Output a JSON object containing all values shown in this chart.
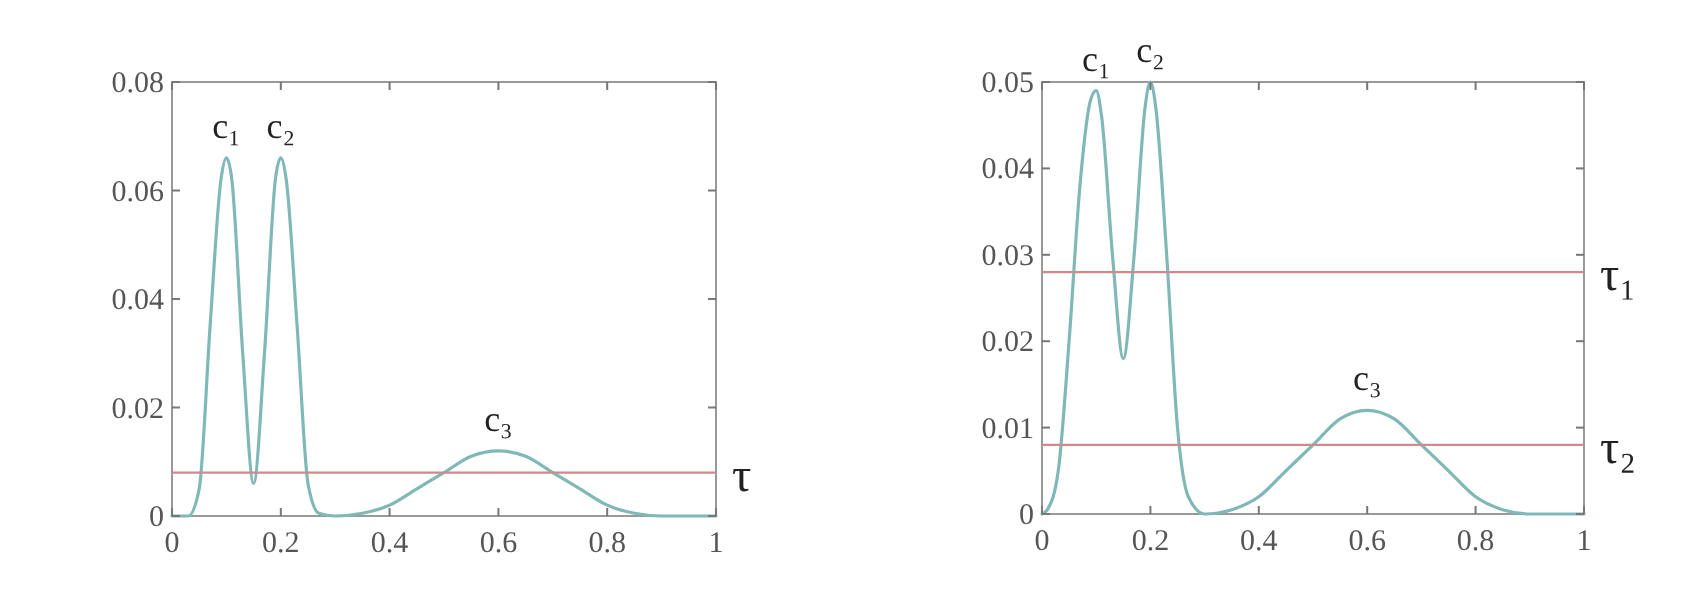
{
  "chart_data": [
    {
      "type": "line",
      "x": [
        0,
        0.03,
        0.05,
        0.07,
        0.09,
        0.1,
        0.11,
        0.13,
        0.15,
        0.17,
        0.19,
        0.2,
        0.21,
        0.23,
        0.25,
        0.27,
        0.3,
        0.35,
        0.4,
        0.45,
        0.5,
        0.55,
        0.6,
        0.65,
        0.7,
        0.75,
        0.8,
        0.85,
        0.9,
        1
      ],
      "series": [
        {
          "color": "#80b8b8",
          "values": [
            0,
            0,
            0.005,
            0.035,
            0.062,
            0.066,
            0.062,
            0.03,
            0.006,
            0.03,
            0.062,
            0.066,
            0.062,
            0.035,
            0.006,
            0.0005,
            0,
            0.0005,
            0.002,
            0.005,
            0.008,
            0.011,
            0.012,
            0.011,
            0.008,
            0.005,
            0.002,
            0.0005,
            0,
            0
          ]
        }
      ],
      "xlim": [
        0,
        1
      ],
      "xticks": [
        0,
        0.2,
        0.4,
        0.6,
        0.8,
        1
      ],
      "ylim": [
        0,
        0.08
      ],
      "yticks": [
        0,
        0.02,
        0.04,
        0.06,
        0.08
      ],
      "ref_lines": [
        {
          "axis": "y",
          "value": 0.008,
          "label": "τ",
          "color": "#d08a8a"
        }
      ],
      "annotations": [
        {
          "text": "c₁",
          "x": 0.1,
          "y": 0.066
        },
        {
          "text": "c₂",
          "x": 0.2,
          "y": 0.066
        },
        {
          "text": "c₃",
          "x": 0.6,
          "y": 0.012
        }
      ]
    },
    {
      "type": "line",
      "x": [
        0,
        0.01,
        0.03,
        0.05,
        0.07,
        0.09,
        0.1,
        0.11,
        0.13,
        0.15,
        0.17,
        0.19,
        0.2,
        0.21,
        0.23,
        0.25,
        0.27,
        0.3,
        0.35,
        0.4,
        0.45,
        0.5,
        0.55,
        0.6,
        0.65,
        0.7,
        0.75,
        0.8,
        0.85,
        0.9,
        1
      ],
      "series": [
        {
          "color": "#80b8b8",
          "values": [
            0,
            0.0005,
            0.005,
            0.02,
            0.038,
            0.048,
            0.049,
            0.046,
            0.03,
            0.018,
            0.03,
            0.047,
            0.05,
            0.047,
            0.03,
            0.01,
            0.002,
            0,
            0.0005,
            0.002,
            0.005,
            0.008,
            0.011,
            0.012,
            0.011,
            0.008,
            0.005,
            0.002,
            0.0005,
            0,
            0
          ]
        }
      ],
      "xlim": [
        0,
        1
      ],
      "xticks": [
        0,
        0.2,
        0.4,
        0.6,
        0.8,
        1
      ],
      "ylim": [
        0,
        0.05
      ],
      "yticks": [
        0,
        0.01,
        0.02,
        0.03,
        0.04,
        0.05
      ],
      "ref_lines": [
        {
          "axis": "y",
          "value": 0.028,
          "label": "τ₁",
          "color": "#d08a8a"
        },
        {
          "axis": "y",
          "value": 0.008,
          "label": "τ₂",
          "color": "#d08a8a"
        }
      ],
      "annotations": [
        {
          "text": "c₁",
          "x": 0.1,
          "y": 0.049
        },
        {
          "text": "c₂",
          "x": 0.2,
          "y": 0.05
        },
        {
          "text": "c₃",
          "x": 0.6,
          "y": 0.012
        }
      ]
    }
  ]
}
